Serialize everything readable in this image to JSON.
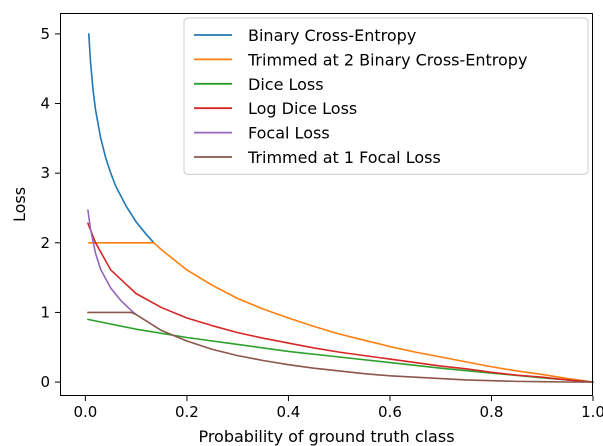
{
  "chart_data": {
    "type": "line",
    "title": "",
    "xlabel": "Probability of ground truth class",
    "ylabel": "Loss",
    "xlim": [
      -0.05,
      1.0
    ],
    "ylim": [
      -0.2,
      5.3
    ],
    "xticks": [
      0.0,
      0.2,
      0.4,
      0.6,
      0.8,
      1.0
    ],
    "xtick_labels": [
      "0.0",
      "0.2",
      "0.4",
      "0.6",
      "0.8",
      "1.0"
    ],
    "yticks": [
      0,
      1,
      2,
      3,
      4,
      5
    ],
    "ytick_labels": [
      "0",
      "1",
      "2",
      "3",
      "4",
      "5"
    ],
    "grid": false,
    "legend_position": "top-right",
    "series": [
      {
        "name": "Binary Cross-Entropy",
        "color": "#1f77b4",
        "x": [
          0.0067,
          0.01,
          0.015,
          0.02,
          0.03,
          0.04,
          0.05,
          0.06,
          0.08,
          0.1,
          0.12,
          0.135
        ],
        "y": [
          5.0,
          4.61,
          4.2,
          3.91,
          3.51,
          3.22,
          3.0,
          2.81,
          2.53,
          2.3,
          2.12,
          2.0
        ]
      },
      {
        "name": "Trimmed at 2 Binary Cross-Entropy",
        "color": "#ff7f0e",
        "x": [
          0.0067,
          0.13,
          0.135,
          0.15,
          0.2,
          0.25,
          0.3,
          0.35,
          0.4,
          0.45,
          0.5,
          0.55,
          0.6,
          0.65,
          0.7,
          0.75,
          0.8,
          0.85,
          0.9,
          0.95,
          1.0
        ],
        "y": [
          2.0,
          2.0,
          2.0,
          1.9,
          1.61,
          1.39,
          1.2,
          1.05,
          0.92,
          0.8,
          0.69,
          0.6,
          0.51,
          0.43,
          0.36,
          0.29,
          0.22,
          0.16,
          0.11,
          0.05,
          0.0
        ]
      },
      {
        "name": "Dice Loss",
        "color": "#2ca02c",
        "x": [
          0.005,
          0.1,
          0.2,
          0.3,
          0.4,
          0.5,
          0.6,
          0.7,
          0.8,
          0.9,
          1.0
        ],
        "y": [
          0.9,
          0.76,
          0.64,
          0.54,
          0.44,
          0.36,
          0.28,
          0.2,
          0.13,
          0.06,
          0.0
        ]
      },
      {
        "name": "Log Dice Loss",
        "color": "#d62728",
        "x": [
          0.005,
          0.02,
          0.05,
          0.1,
          0.15,
          0.2,
          0.25,
          0.3,
          0.35,
          0.4,
          0.45,
          0.5,
          0.55,
          0.6,
          0.65,
          0.7,
          0.75,
          0.8,
          0.85,
          0.9,
          0.95,
          1.0
        ],
        "y": [
          2.28,
          2.0,
          1.61,
          1.27,
          1.07,
          0.92,
          0.81,
          0.71,
          0.63,
          0.56,
          0.49,
          0.43,
          0.38,
          0.33,
          0.28,
          0.23,
          0.19,
          0.14,
          0.1,
          0.07,
          0.03,
          0.0
        ]
      },
      {
        "name": "Focal Loss",
        "color": "#9467bd",
        "x": [
          0.005,
          0.01,
          0.02,
          0.03,
          0.05,
          0.07,
          0.09,
          0.1
        ],
        "y": [
          2.47,
          2.2,
          1.85,
          1.62,
          1.35,
          1.17,
          1.03,
          0.97
        ]
      },
      {
        "name": "Trimmed at 1 Focal Loss",
        "color": "#8c564b",
        "x": [
          0.005,
          0.09,
          0.1,
          0.15,
          0.2,
          0.25,
          0.3,
          0.35,
          0.4,
          0.45,
          0.5,
          0.55,
          0.6,
          0.65,
          0.7,
          0.75,
          0.8,
          0.85,
          0.9,
          0.95,
          1.0
        ],
        "y": [
          1.0,
          1.0,
          0.97,
          0.74,
          0.59,
          0.47,
          0.38,
          0.31,
          0.25,
          0.2,
          0.16,
          0.12,
          0.09,
          0.07,
          0.05,
          0.03,
          0.02,
          0.01,
          0.005,
          0.001,
          0.0
        ]
      }
    ]
  }
}
